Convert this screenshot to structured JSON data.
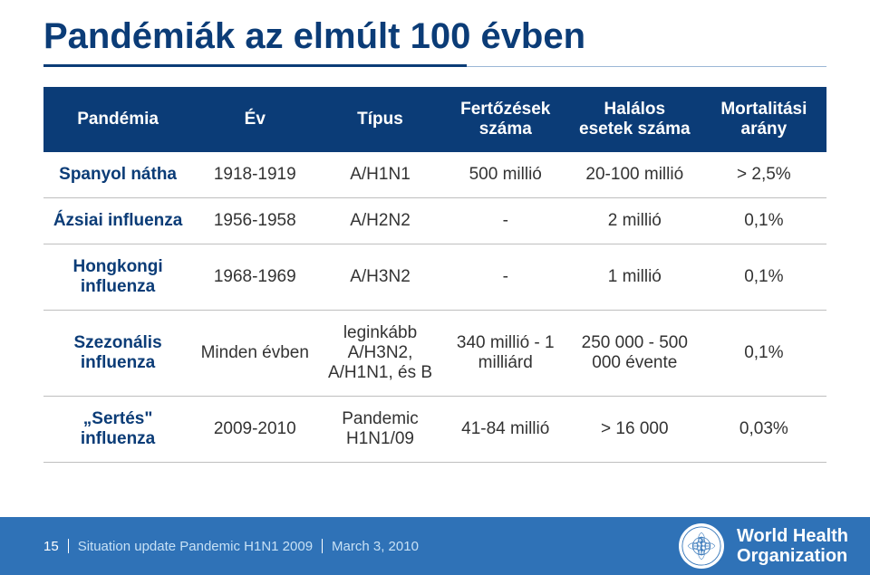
{
  "colors": {
    "title": "#0b3c77",
    "accent": "#0b3c77",
    "header_bg": "#0b3c77",
    "row_name": "#0b3c77",
    "cell_text": "#333333",
    "footer_bg": "#2f72b7",
    "footer_text": "#ffffff",
    "footer_subtitle": "#c6e0f5",
    "underline_thin": "#9bb7d6",
    "border": "#bfbfbf"
  },
  "title": "Pandémiák az elmúlt 100 évben",
  "columns": [
    {
      "label": "Pandémia",
      "width": "19%"
    },
    {
      "label": "Év",
      "width": "16%"
    },
    {
      "label": "Típus",
      "width": "16%"
    },
    {
      "label": "Fertőzések száma",
      "width": "16%"
    },
    {
      "label": "Halálos esetek száma",
      "width": "17%"
    },
    {
      "label": "Mortalitási arány",
      "width": "16%"
    }
  ],
  "rows": [
    {
      "name": "Spanyol nátha",
      "year": "1918-1919",
      "type": "A/H1N1",
      "infections": "500 millió",
      "deaths": "20-100 millió",
      "mortality": "> 2,5%"
    },
    {
      "name": "Ázsiai influenza",
      "year": "1956-1958",
      "type": "A/H2N2",
      "infections": "-",
      "deaths": "2 millió",
      "mortality": "0,1%"
    },
    {
      "name": "Hongkongi influenza",
      "year": "1968-1969",
      "type": "A/H3N2",
      "infections": "-",
      "deaths": "1 millió",
      "mortality": "0,1%"
    },
    {
      "name": "Szezonális influenza",
      "year": "Minden  évben",
      "type": "leginkább A/H3N2, A/H1N1, és B",
      "infections": "340 millió - 1 milliárd",
      "deaths": "250 000 - 500 000 évente",
      "mortality": "0,1%"
    },
    {
      "name": "„Sertés\" influenza",
      "year": "2009-2010",
      "type": "Pandemic H1N1/09",
      "infections": "41-84 millió",
      "deaths": "> 16 000",
      "mortality": "0,03%"
    }
  ],
  "footer": {
    "page": "15",
    "subtitle": "Situation update Pandemic H1N1 2009",
    "date": "March 3, 2010",
    "org_line1": "World Health",
    "org_line2": "Organization"
  }
}
